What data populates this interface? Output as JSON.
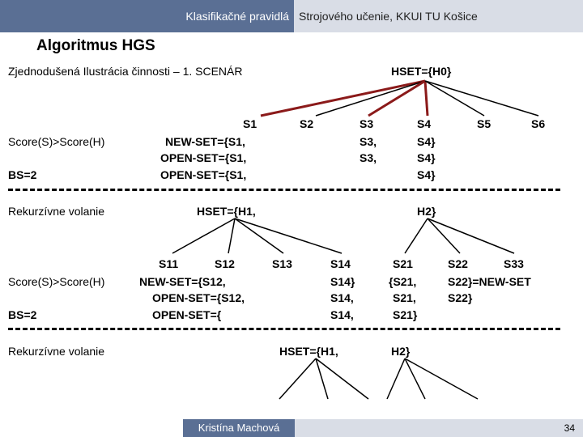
{
  "header": {
    "left": "Klasifikačné pravidlá",
    "right": "Strojového učenie, KKUI TU Košice"
  },
  "title": "Algoritmus HGS",
  "subtitle": "Zjednodušená Ilustrácia činnosti – 1. SCENÁR",
  "hset_top": "HSET={H0}",
  "level1": {
    "states": [
      "S1",
      "S2",
      "S3",
      "S4",
      "S5",
      "S6"
    ],
    "score": "Score(S)>Score(H)",
    "bs": "BS=2",
    "s1_new": "NEW-SET={S1,",
    "s1_open1": "OPEN-SET={S1,",
    "s1_open2": "OPEN-SET={S1,",
    "s3_a": "S3,",
    "s3_b": "S3,",
    "s4_a": "S4}",
    "s4_b": "S4}",
    "s4_c": "S4}"
  },
  "rekurzia_label": "Rekurzívne volanie",
  "hset_mid_left": "HSET={H1,",
  "hset_mid_right": "H2}",
  "level2": {
    "states_left": [
      "S11",
      "S12",
      "S13",
      "S14"
    ],
    "score": "Score(S)>Score(H)",
    "bs": "BS=2",
    "new": "NEW-SET={S12,",
    "open1": "OPEN-SET={S12,",
    "open2": "OPEN-SET={",
    "s14_a": "S14}",
    "s14_b": "S14,",
    "s14_c": "S14,",
    "s21": "S21",
    "s21_a": "{S21,",
    "s21_b": "S21,",
    "s21_c": "S21}",
    "s22": "S22",
    "s33": "S33",
    "s22_new": "S22}=NEW-SET",
    "s22_b": "S22}"
  },
  "hset_bot_left": "HSET={H1,",
  "hset_bot_right": "H2}",
  "footer": {
    "author": "Kristína Machová",
    "page": "34"
  },
  "colors": {
    "header_blue": "#5a6f94",
    "header_gray": "#d9dde6",
    "highlight_line": "#8b1a1a"
  }
}
